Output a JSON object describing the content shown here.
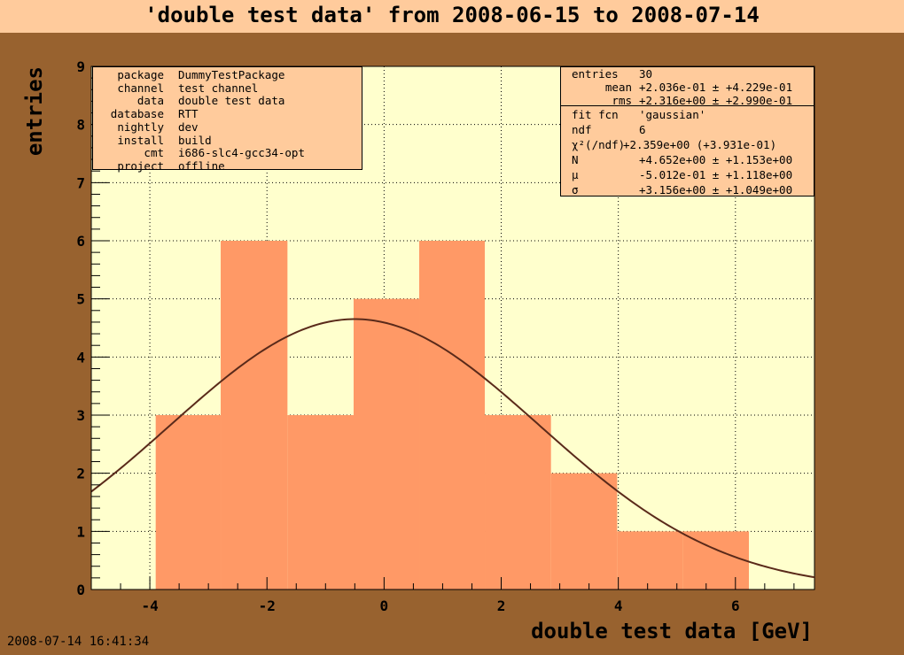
{
  "title": "'double test data' from 2008-06-15 to 2008-07-14",
  "timestamp": "2008-07-14 16:41:34",
  "colors": {
    "background": "#98622f",
    "title_band": "#ffcb9c",
    "plot_area": "#ffffcd",
    "histogram_fill": "#ff9966",
    "fit_curve": "#5a2a1a",
    "info_box": "#ffcb9c"
  },
  "meta": [
    {
      "key": "package",
      "value": "DummyTestPackage"
    },
    {
      "key": "channel",
      "value": "test channel"
    },
    {
      "key": "data",
      "value": "double test data"
    },
    {
      "key": "database",
      "value": "RTT"
    },
    {
      "key": "nightly",
      "value": "dev"
    },
    {
      "key": "install",
      "value": "build"
    },
    {
      "key": "cmt",
      "value": "i686-slc4-gcc34-opt"
    },
    {
      "key": "project",
      "value": "offline"
    }
  ],
  "stats": {
    "entries_label": "entries",
    "entries_value": "30",
    "mean_label": "mean",
    "mean_value": "+2.036e-01 ± +4.229e-01",
    "rms_label": "rms",
    "rms_value": "+2.316e+00 ± +2.990e-01"
  },
  "fit": {
    "fcn_label": "fit fcn",
    "fcn_value": "'gaussian'",
    "ndf_label": "ndf",
    "ndf_value": "6",
    "chi2_label": "χ²(/ndf)",
    "chi2_value": "+2.359e+00 (+3.931e-01)",
    "N_label": "N",
    "N_value": "+4.652e+00 ± +1.153e+00",
    "mu_label": "μ",
    "mu_value": "-5.012e-01 ± +1.118e+00",
    "sigma_label": "σ",
    "sigma_value": "+3.156e+00 ± +1.049e+00"
  },
  "chart_data": {
    "type": "bar",
    "xlabel": "double test data [GeV]",
    "ylabel": "entries",
    "xlim": [
      -5.0,
      7.35
    ],
    "ylim": [
      0,
      9
    ],
    "grid": true,
    "x_ticks": [
      -4,
      -2,
      0,
      2,
      4,
      6
    ],
    "y_ticks": [
      0,
      1,
      2,
      3,
      4,
      5,
      6,
      7,
      8,
      9
    ],
    "bin_edges": [
      -3.9,
      -2.79,
      -1.65,
      -0.52,
      0.6,
      1.72,
      2.85,
      3.98,
      5.1,
      6.23
    ],
    "values": [
      3,
      6,
      3,
      5,
      6,
      3,
      2,
      1,
      1
    ],
    "fit_curve": {
      "function": "gaussian",
      "N": 4.652,
      "mu": -0.5012,
      "sigma": 3.156
    }
  }
}
